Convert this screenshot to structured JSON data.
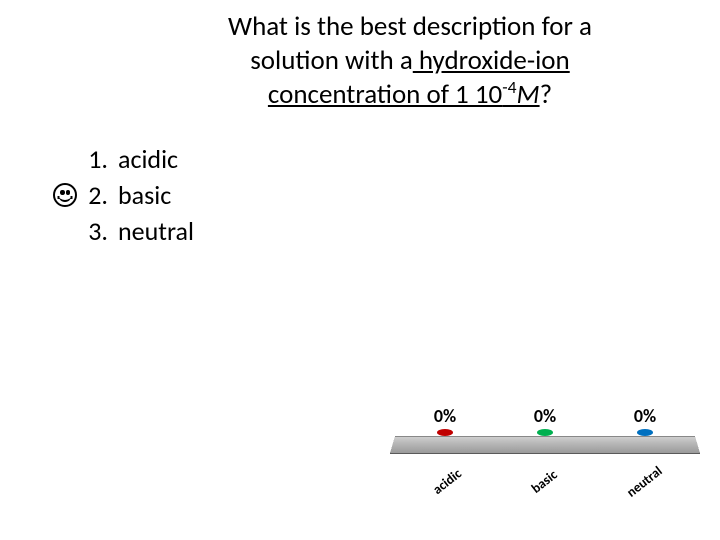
{
  "question": {
    "line1": "What is the best description for a",
    "line2_pre": "solution with a",
    "line2_uhead": " hydroxide-ion",
    "line3_pre_u": "concentration of 1  10",
    "line3_sup": "-4",
    "line3_ital": "M",
    "line3_end": "?"
  },
  "answers": {
    "items": [
      {
        "num": "1.",
        "label": "acidic",
        "correct": false
      },
      {
        "num": "2.",
        "label": "basic",
        "correct": true
      },
      {
        "num": "3.",
        "label": "neutral",
        "correct": false
      }
    ]
  },
  "chart": {
    "type": "bar",
    "categories": [
      "acidic",
      "basic",
      "neutral"
    ],
    "values": [
      "0%",
      "0%",
      "0%"
    ],
    "dot_colors": [
      "#c00000",
      "#00b050",
      "#0070c0"
    ],
    "platform_gradient_top": "#cfcfcf",
    "platform_gradient_bottom": "#9a9a9a",
    "value_fontsize": 18,
    "category_fontsize": 13.5,
    "category_rotation_deg": -38,
    "background_color": "#ffffff"
  }
}
